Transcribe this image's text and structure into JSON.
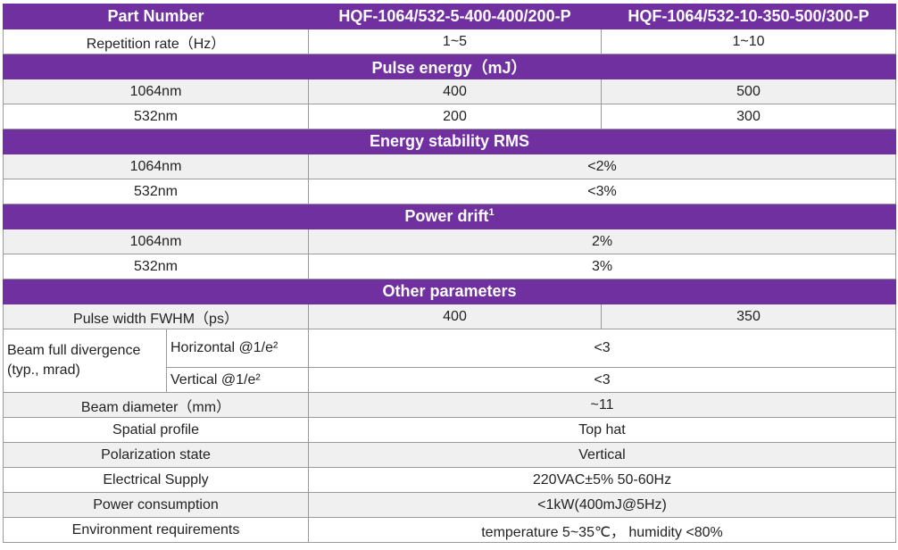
{
  "header": {
    "part_number": "Part Number",
    "model_a": "HQF-1064/532-5-400-400/200-P",
    "model_b": "HQF-1064/532-10-350-500/300-P"
  },
  "repetition": {
    "label": "Repetition rate（Hz）",
    "a": "1~5",
    "b": "1~10"
  },
  "pulse_energy": {
    "title": "Pulse energy（mJ）",
    "rows": [
      {
        "label": "1064nm",
        "a": "400",
        "b": "500"
      },
      {
        "label": "532nm",
        "a": "200",
        "b": "300"
      }
    ]
  },
  "energy_stability": {
    "title": "Energy stability RMS",
    "rows": [
      {
        "label": "1064nm",
        "value": "<2%"
      },
      {
        "label": "532nm",
        "value": "<3%"
      }
    ]
  },
  "power_drift": {
    "title": "Power drift",
    "footnote": "1",
    "rows": [
      {
        "label": "1064nm",
        "value": "2%"
      },
      {
        "label": "532nm",
        "value": "3%"
      }
    ]
  },
  "other": {
    "title": "Other parameters",
    "pulse_width": {
      "label": "Pulse width FWHM（ps）",
      "a": "400",
      "b": "350"
    },
    "divergence": {
      "label": "Beam full divergence (typ., mrad)",
      "horizontal_label": "Horizontal @1/e²",
      "horizontal_value": "<3",
      "vertical_label": "Vertical @1/e²",
      "vertical_value": "<3"
    },
    "rows": [
      {
        "label": "Beam diameter（mm）",
        "value": "~11"
      },
      {
        "label": "Spatial profile",
        "value": "Top hat"
      },
      {
        "label": "Polarization state",
        "value": "Vertical"
      },
      {
        "label": "Electrical Supply",
        "value": "220VAC±5% 50-60Hz"
      },
      {
        "label": "Power consumption",
        "value": "<1kW(400mJ@5Hz)"
      },
      {
        "label": "Environment requirements",
        "value": "temperature 5~35℃， humidity <80%"
      }
    ]
  }
}
